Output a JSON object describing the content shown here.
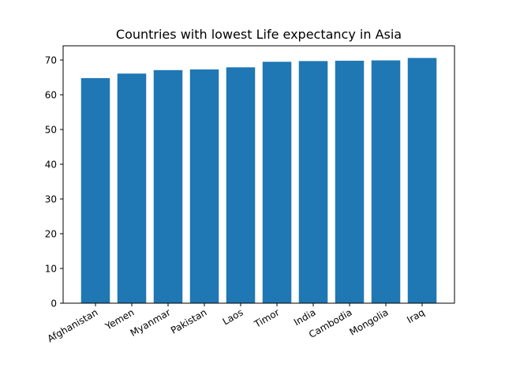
{
  "chart_data": {
    "type": "bar",
    "title": "Countries with lowest Life expectancy in Asia",
    "xlabel": "",
    "ylabel": "",
    "categories": [
      "Afghanistan",
      "Yemen",
      "Myanmar",
      "Pakistan",
      "Laos",
      "Timor",
      "India",
      "Cambodia",
      "Mongolia",
      "Iraq"
    ],
    "values": [
      64.8,
      66.1,
      67.1,
      67.3,
      67.9,
      69.5,
      69.7,
      69.8,
      69.9,
      70.6
    ],
    "ylim": [
      0,
      74.1
    ],
    "yticks": [
      0,
      10,
      20,
      30,
      40,
      50,
      60,
      70
    ],
    "bar_color": "#1f77b4",
    "grid": false,
    "legend": "none"
  }
}
